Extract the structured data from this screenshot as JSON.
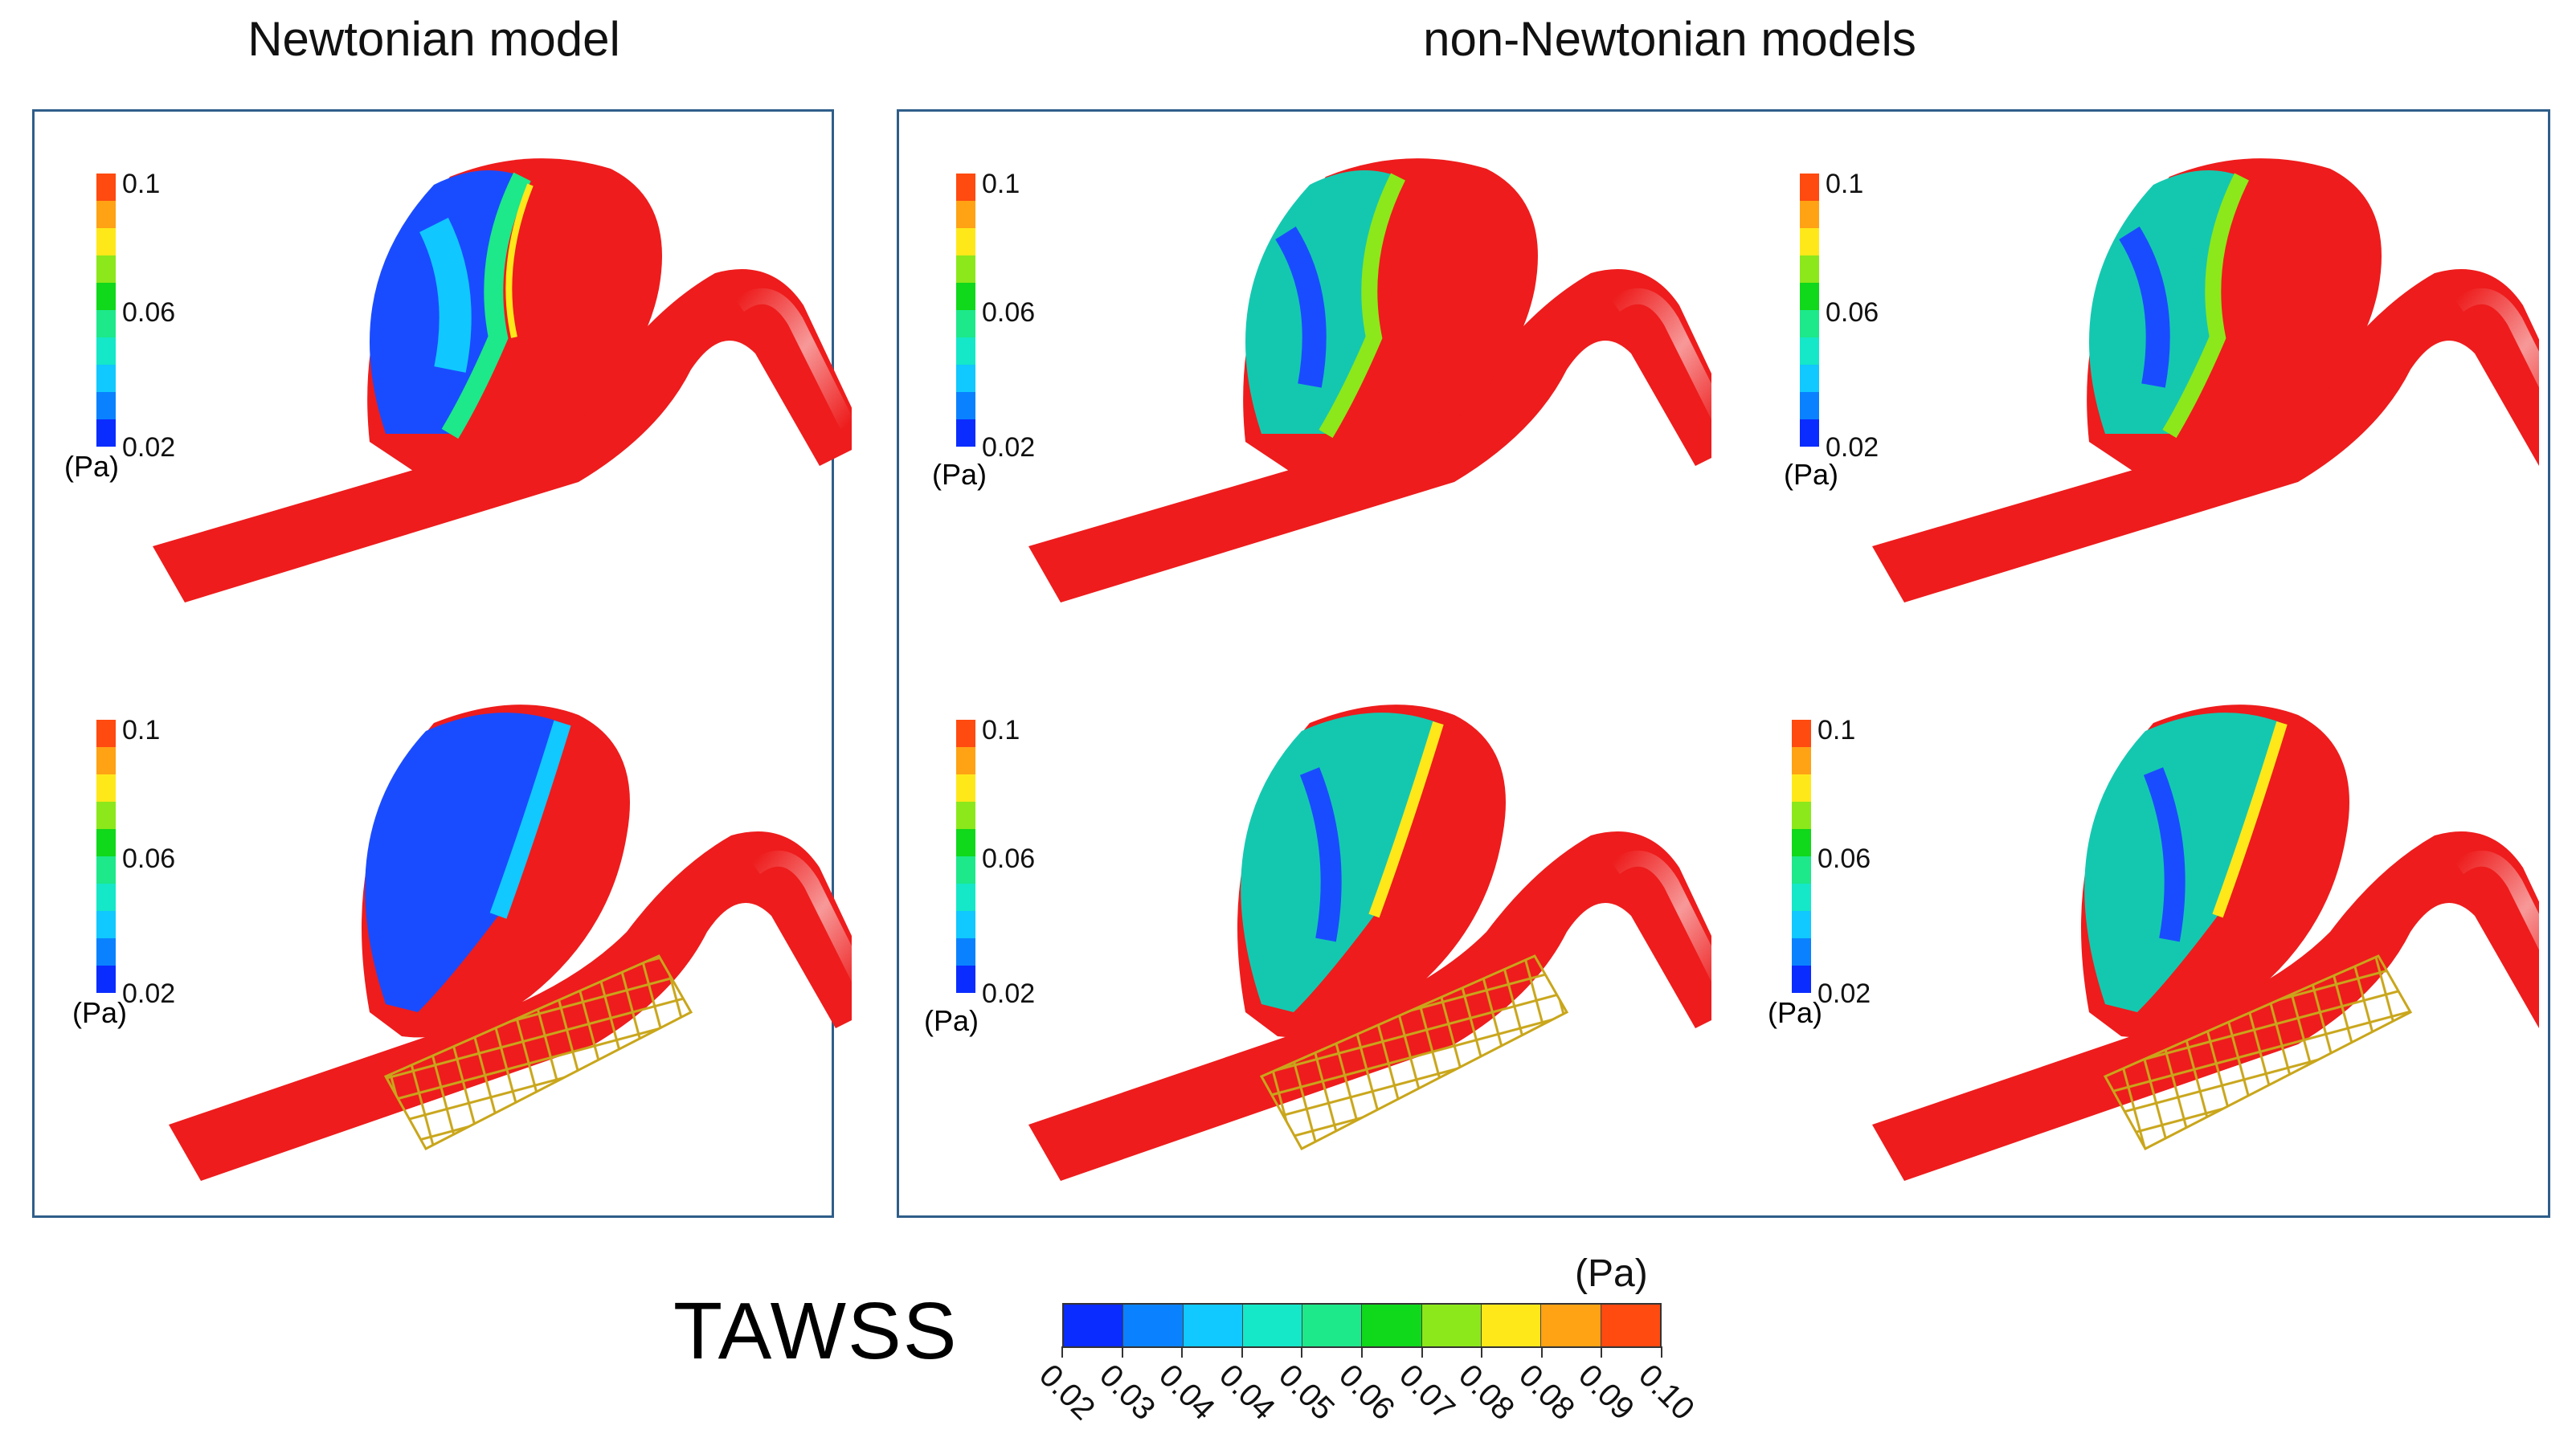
{
  "headings": {
    "newtonian": "Newtonian model",
    "non_newtonian": "non-Newtonian models"
  },
  "panel_legend": {
    "max": "0.1",
    "mid": "0.06",
    "min": "0.02",
    "unit": "(Pa)"
  },
  "colors": {
    "frame": "#2f5e8a",
    "vessel_red": "#ee1c1c",
    "stent": "#c9a61b",
    "scale": [
      "#0a2cff",
      "#0a82ff",
      "#11c8ff",
      "#14e8c8",
      "#1de88a",
      "#10d81a",
      "#8ce81a",
      "#ffe81a",
      "#ffa214",
      "#ff4a10"
    ]
  },
  "colorbar": {
    "title": "TAWSS",
    "unit": "(Pa)",
    "ticks": [
      "0.02",
      "0.03",
      "0.04",
      "0.04",
      "0.05",
      "0.06",
      "0.07",
      "0.08",
      "0.08",
      "0.09",
      "0.10"
    ]
  }
}
